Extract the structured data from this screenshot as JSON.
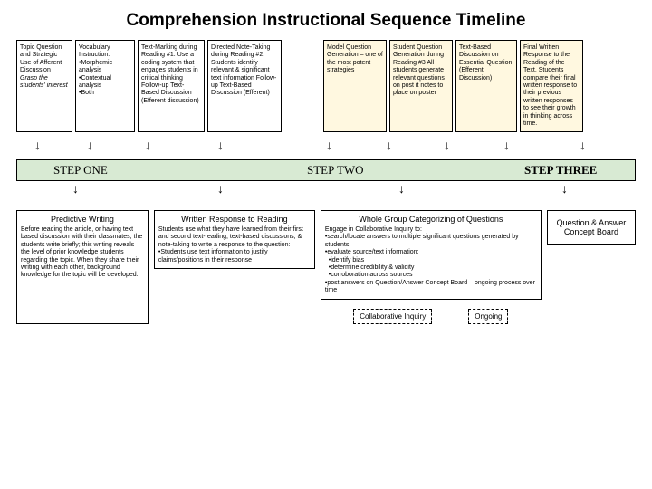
{
  "title": "Comprehension Instructional Sequence Timeline",
  "cards": [
    {
      "cls": "c1",
      "bg": "",
      "html": "Topic Question and Strategic Use of Afferent Discussion <i>Grasp the students' interest</i>"
    },
    {
      "cls": "c2",
      "bg": "",
      "html": "Vocabulary Instruction:<br>•Morphemic analysis<br>•Contextual analysis<br>•Both"
    },
    {
      "cls": "c3",
      "bg": "",
      "html": "Text-Marking during Reading #1: Use a coding system that engages students in critical thinking Follow-up Text-Based Discussion (Efferent discussion)"
    },
    {
      "cls": "c4",
      "bg": "",
      "html": "Directed Note-Taking during Reading #2: Students identify relevant &amp; significant text information Follow-up Text-Based Discussion (Efferent)"
    },
    {
      "cls": "gap1",
      "spacer": true
    },
    {
      "cls": "c5",
      "bg": "yellow",
      "html": "Model Question Generation – one of the most potent strategies"
    },
    {
      "cls": "c6",
      "bg": "yellow",
      "html": "Student Question Generation during Reading #3 All students generate relevant questions on post it notes to place on poster"
    },
    {
      "cls": "c7",
      "bg": "yellow",
      "html": "Text-Based Discussion on Essential Question (Efferent Discussion)"
    },
    {
      "cls": "c8",
      "bg": "yellow",
      "html": "Final Written Response to the Reading of the Text. Students compare their final written response to their previous written responses to see their growth in thinking across time."
    }
  ],
  "steps": {
    "s1": "STEP ONE",
    "s2": "STEP TWO",
    "s3": "STEP THREE"
  },
  "box1": {
    "title": "Predictive Writing",
    "body": "Before reading the article, or having text based discussion with their classmates, the students write briefly; this writing reveals the level of prior knowledge students regarding the topic. When they share their writing with each other, background knowledge for the topic will be developed."
  },
  "box2": {
    "title": "Written Response to Reading",
    "body": "Students use what they have learned from their first and second text-reading, text-based discussions, & note-taking to write a response to the question:<br>•Students use text information to justify claims/positions in their response"
  },
  "box3": {
    "title": "Whole Group Categorizing of Questions",
    "body": "Engage in Collaborative Inquiry to:<br>•search/locate answers to multiple significant questions generated by students<br>•evaluate source/text information:<br>&nbsp;&nbsp;•identify bias<br>&nbsp;&nbsp;•determine credibility & validity<br>&nbsp;&nbsp;•corroboration across sources<br>•post answers on Question/Answer Concept Board – ongoing process over time"
  },
  "box4": "Question & Answer Concept Board",
  "dash1": "Collaborative Inquiry",
  "dash2": "Ongoing",
  "colors": {
    "bar": "#d8ead3",
    "yellow": "#fff8e0"
  }
}
